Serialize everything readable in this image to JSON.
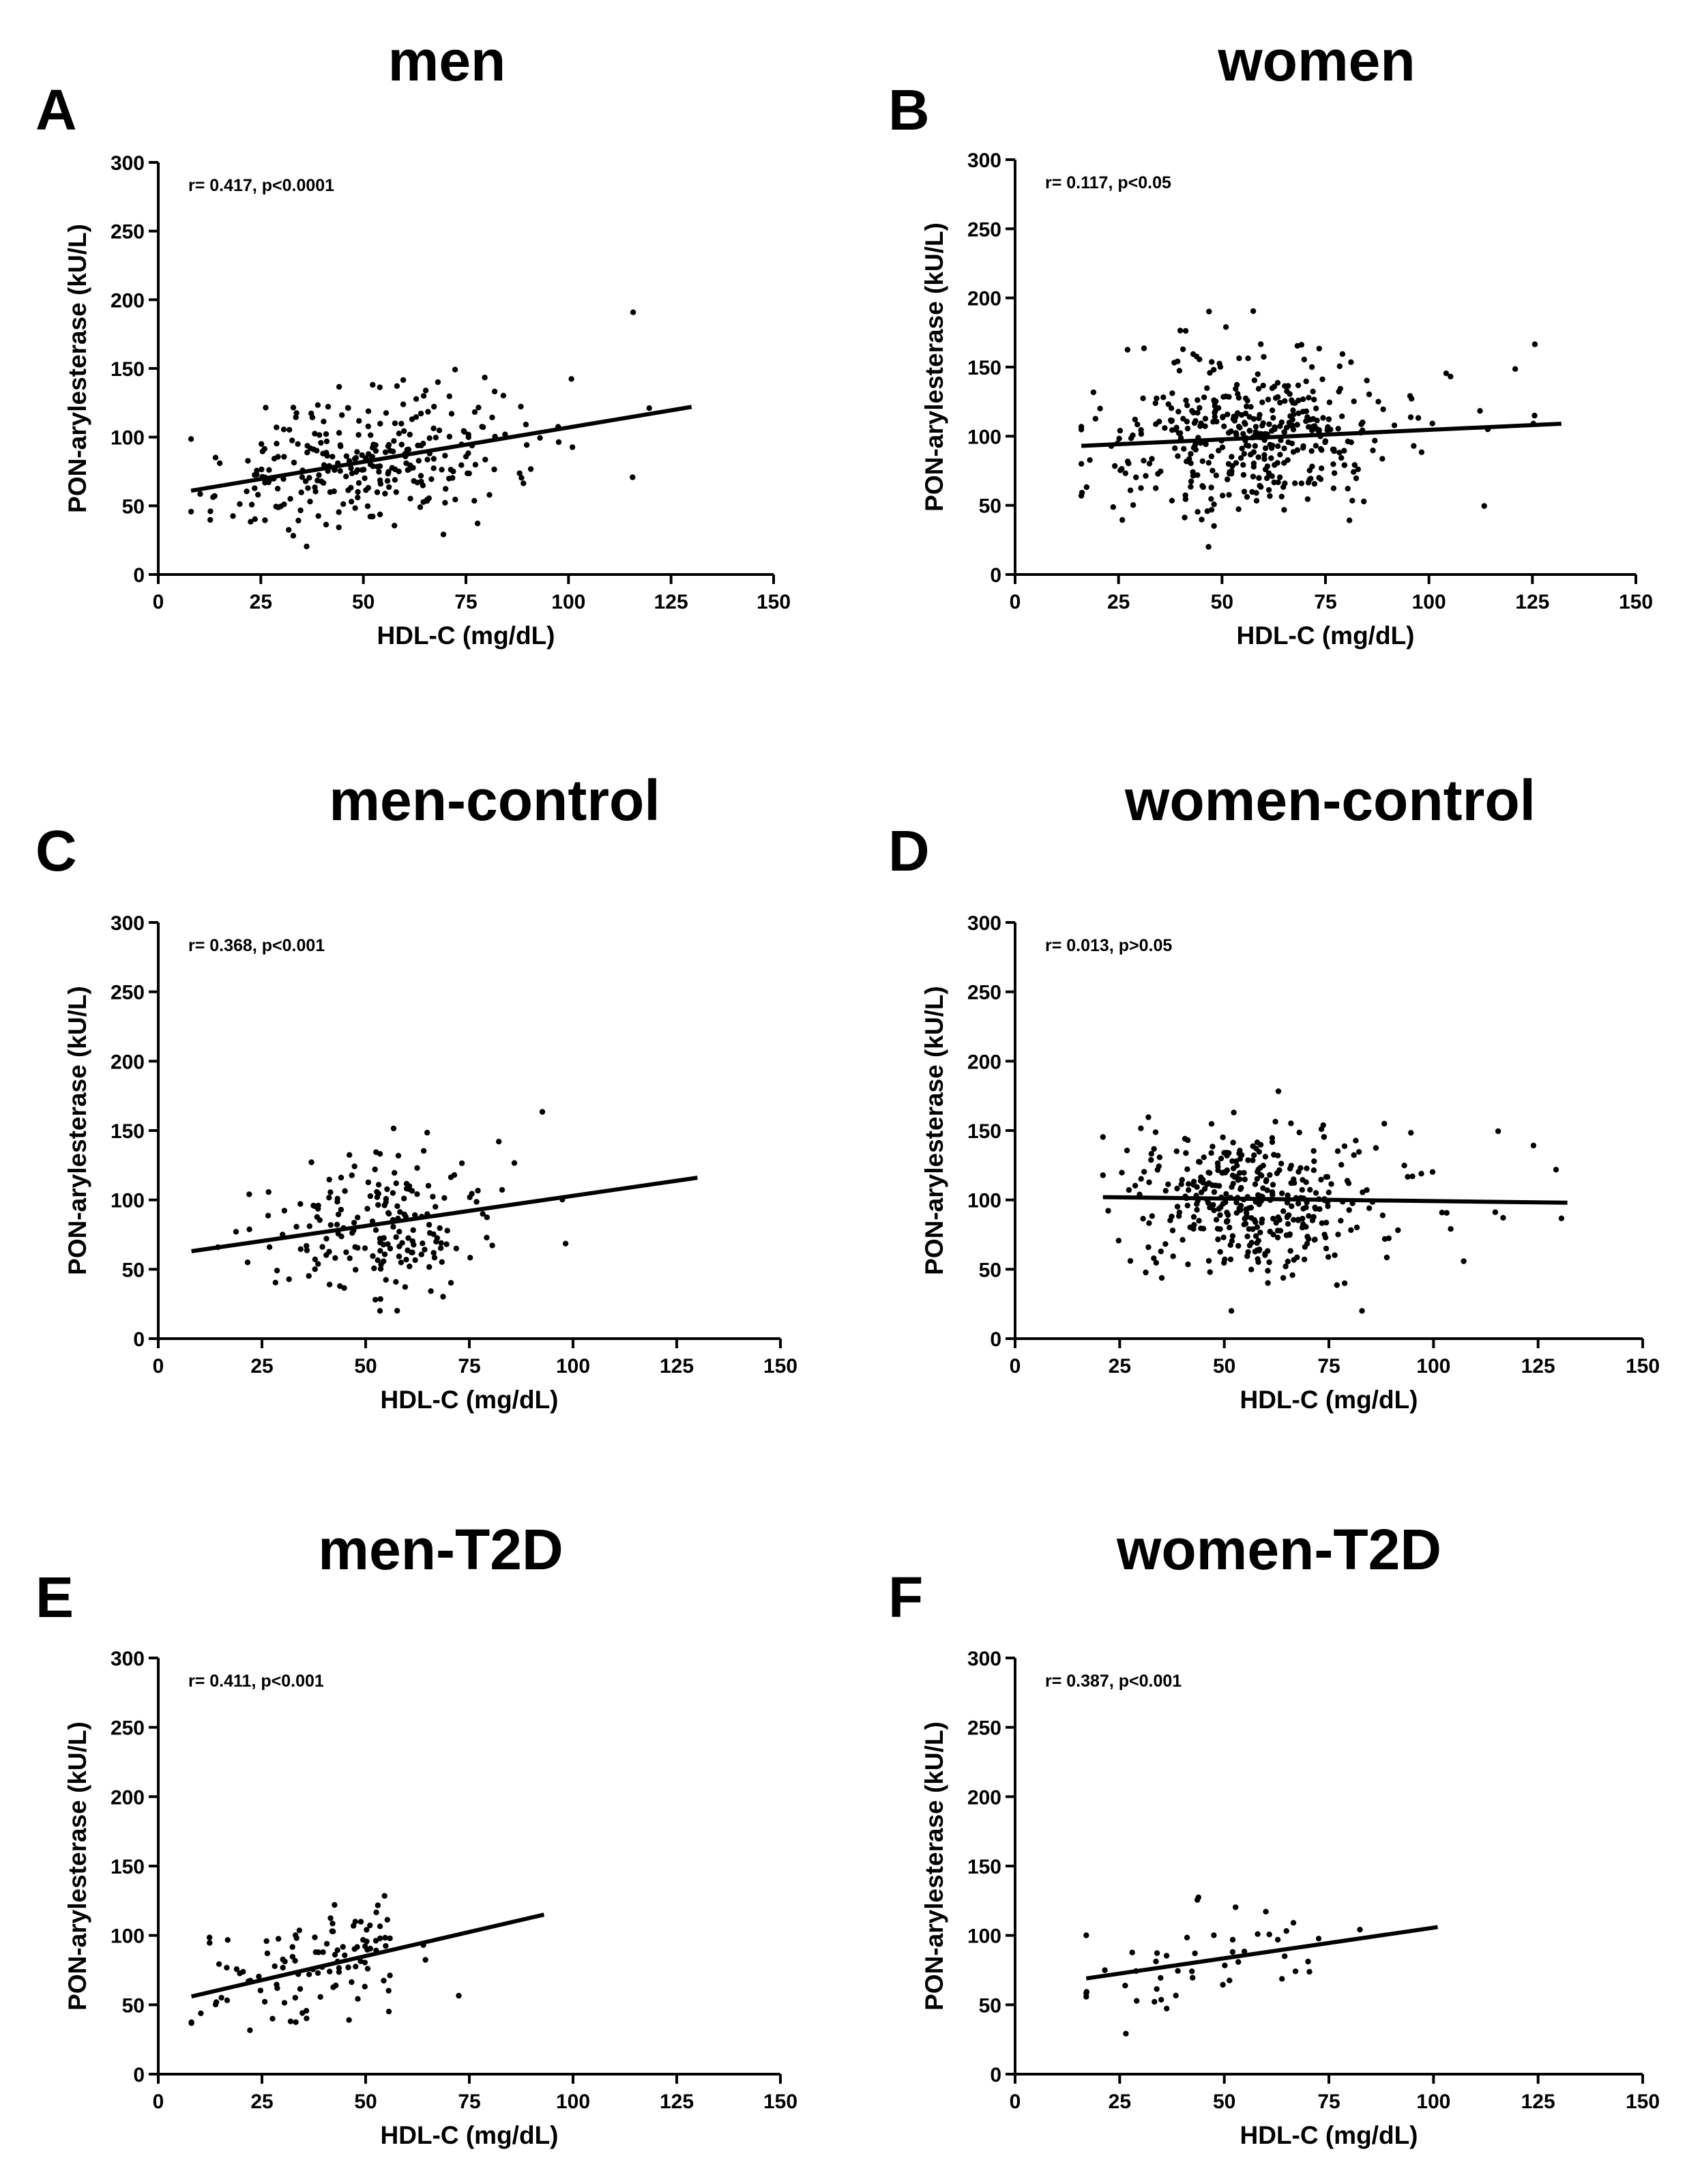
{
  "figure": {
    "xlabel": "HDL-C (mg/dL)",
    "ylabel": "PON-arylesterase (kU/L)",
    "x_ticks": [
      "0",
      "25",
      "50",
      "75",
      "100",
      "125",
      "150"
    ],
    "y_ticks": [
      "0",
      "50",
      "100",
      "150",
      "200",
      "250",
      "300"
    ]
  },
  "chart_data": [
    {
      "type": "scatter",
      "letter": "A",
      "title": "men",
      "stat": "r= 0.417, p<0.0001",
      "xlabel": "HDL-C (mg/dL)",
      "ylabel": "PON-arylesterase (kU/L)",
      "xlim": [
        0,
        150
      ],
      "ylim": [
        0,
        300
      ],
      "n_points": 290,
      "x_range": [
        8,
        130
      ],
      "x_center": 50,
      "x_spread": 17,
      "residual_sd": 22,
      "regression": {
        "x": [
          8,
          130
        ],
        "y": [
          61,
          122
        ]
      },
      "seed": 11
    },
    {
      "type": "scatter",
      "letter": "B",
      "title": "women",
      "stat": "r= 0.117, p<0.05",
      "xlabel": "HDL-C (mg/dL)",
      "ylabel": "PON-arylesterase (kU/L)",
      "xlim": [
        0,
        150
      ],
      "ylim": [
        0,
        300
      ],
      "n_points": 430,
      "x_range": [
        16,
        132
      ],
      "x_center": 57,
      "x_spread": 16,
      "residual_sd": 28,
      "regression": {
        "x": [
          16,
          132
        ],
        "y": [
          93,
          109
        ]
      },
      "seed": 23
    },
    {
      "type": "scatter",
      "letter": "C",
      "title": "men-control",
      "stat": "r= 0.368, p<0.001",
      "xlabel": "HDL-C (mg/dL)",
      "ylabel": "PON-arylesterase (kU/L)",
      "xlim": [
        0,
        150
      ],
      "ylim": [
        0,
        300
      ],
      "n_points": 190,
      "x_range": [
        8,
        130
      ],
      "x_center": 54,
      "x_spread": 14,
      "residual_sd": 22,
      "regression": {
        "x": [
          8,
          130
        ],
        "y": [
          63,
          116
        ]
      },
      "seed": 37
    },
    {
      "type": "scatter",
      "letter": "D",
      "title": "women-control",
      "stat": "r= 0.013, p>0.05",
      "xlabel": "HDL-C (mg/dL)",
      "ylabel": "PON-arylesterase (kU/L)",
      "xlim": [
        0,
        150
      ],
      "ylim": [
        0,
        300
      ],
      "n_points": 390,
      "x_range": [
        21,
        132
      ],
      "x_center": 58,
      "x_spread": 15,
      "residual_sd": 28,
      "regression": {
        "x": [
          21,
          132
        ],
        "y": [
          102,
          98
        ]
      },
      "seed": 41
    },
    {
      "type": "scatter",
      "letter": "E",
      "title": "men-T2D",
      "stat": "r= 0.411, p<0.001",
      "xlabel": "HDL-C (mg/dL)",
      "ylabel": "PON-arylesterase (kU/L)",
      "xlim": [
        0,
        150
      ],
      "ylim": [
        0,
        300
      ],
      "n_points": 110,
      "x_range": [
        8,
        93
      ],
      "x_center": 38,
      "x_spread": 13,
      "residual_sd": 20,
      "regression": {
        "x": [
          8,
          93
        ],
        "y": [
          56,
          115
        ]
      },
      "seed": 53
    },
    {
      "type": "scatter",
      "letter": "F",
      "title": "women-T2D",
      "stat": "r= 0.387, p<0.001",
      "xlabel": "HDL-C (mg/dL)",
      "ylabel": "PON-arylesterase (kU/L)",
      "xlim": [
        0,
        150
      ],
      "ylim": [
        0,
        300
      ],
      "n_points": 48,
      "x_range": [
        17,
        101
      ],
      "x_center": 45,
      "x_spread": 15,
      "residual_sd": 20,
      "regression": {
        "x": [
          17,
          101
        ],
        "y": [
          69,
          106
        ]
      },
      "seed": 67
    }
  ]
}
